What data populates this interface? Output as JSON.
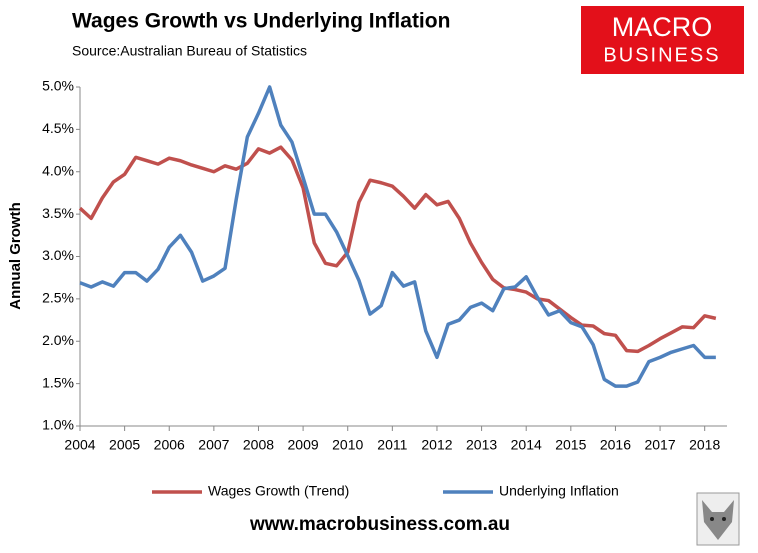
{
  "chart_data": {
    "type": "line",
    "title": "Wages Growth vs Underlying Inflation",
    "subtitle": "Source:Australian Bureau of Statistics",
    "y_label": "Annual Growth",
    "logo": {
      "line1": "MACRO",
      "line2": "BUSINESS"
    },
    "website": "www.macrobusiness.com.au",
    "x": [
      2004,
      2004.25,
      2004.5,
      2004.75,
      2005,
      2005.25,
      2005.5,
      2005.75,
      2006,
      2006.25,
      2006.5,
      2006.75,
      2007,
      2007.25,
      2007.5,
      2007.75,
      2008,
      2008.25,
      2008.5,
      2008.75,
      2009,
      2009.25,
      2009.5,
      2009.75,
      2010,
      2010.25,
      2010.5,
      2010.75,
      2011,
      2011.25,
      2011.5,
      2011.75,
      2012,
      2012.25,
      2012.5,
      2012.75,
      2013,
      2013.25,
      2013.5,
      2013.75,
      2014,
      2014.25,
      2014.5,
      2014.75,
      2015,
      2015.25,
      2015.5,
      2015.75,
      2016,
      2016.25,
      2016.5,
      2016.75,
      2017,
      2017.25,
      2017.5,
      2017.75,
      2018,
      2018.25
    ],
    "series": [
      {
        "name": "Wages Growth (Trend)",
        "color": "#c0504d",
        "values": [
          3.57,
          3.45,
          3.69,
          3.88,
          3.97,
          4.17,
          4.13,
          4.09,
          4.16,
          4.13,
          4.08,
          4.04,
          4.0,
          4.07,
          4.03,
          4.1,
          4.27,
          4.22,
          4.29,
          4.14,
          3.81,
          3.16,
          2.92,
          2.89,
          3.05,
          3.64,
          3.9,
          3.87,
          3.83,
          3.71,
          3.57,
          3.73,
          3.61,
          3.65,
          3.45,
          3.16,
          2.93,
          2.73,
          2.63,
          2.61,
          2.58,
          2.5,
          2.48,
          2.38,
          2.28,
          2.19,
          2.18,
          2.09,
          2.07,
          1.89,
          1.88,
          1.95,
          2.03,
          2.1,
          2.17,
          2.16,
          2.3,
          2.27
        ]
      },
      {
        "name": "Underlying Inflation",
        "color": "#4f81bd",
        "values": [
          2.69,
          2.64,
          2.7,
          2.65,
          2.81,
          2.81,
          2.71,
          2.85,
          3.11,
          3.25,
          3.05,
          2.71,
          2.77,
          2.86,
          3.67,
          4.41,
          4.69,
          5.0,
          4.55,
          4.35,
          3.93,
          3.5,
          3.5,
          3.29,
          3.01,
          2.72,
          2.32,
          2.42,
          2.81,
          2.65,
          2.7,
          2.12,
          1.81,
          2.2,
          2.25,
          2.4,
          2.45,
          2.36,
          2.62,
          2.64,
          2.76,
          2.52,
          2.31,
          2.36,
          2.22,
          2.17,
          1.96,
          1.55,
          1.47,
          1.47,
          1.52,
          1.76,
          1.81,
          1.87,
          1.91,
          1.95,
          1.81,
          1.81
        ]
      }
    ],
    "xlim": [
      2004,
      2018.5
    ],
    "xticks": [
      2004,
      2005,
      2006,
      2007,
      2008,
      2009,
      2010,
      2011,
      2012,
      2013,
      2014,
      2015,
      2016,
      2017,
      2018
    ],
    "ylim": [
      1.0,
      5.0
    ],
    "yticks": [
      {
        "value": 1.0,
        "label": "1.0%"
      },
      {
        "value": 1.5,
        "label": "1.5%"
      },
      {
        "value": 2.0,
        "label": "2.0%"
      },
      {
        "value": 2.5,
        "label": "2.5%"
      },
      {
        "value": 3.0,
        "label": "3.0%"
      },
      {
        "value": 3.5,
        "label": "3.5%"
      },
      {
        "value": 4.0,
        "label": "4.0%"
      },
      {
        "value": 4.5,
        "label": "4.5%"
      },
      {
        "value": 5.0,
        "label": "5.0%"
      }
    ],
    "grid": false,
    "legend": "bottom"
  }
}
